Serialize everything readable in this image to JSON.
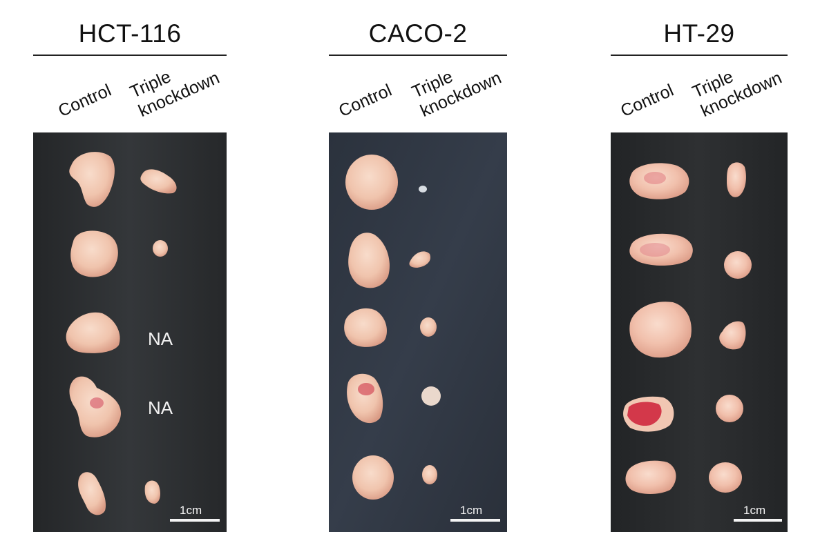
{
  "colors": {
    "panel_hct": "#2a2c2e",
    "panel_caco": "#2d3440",
    "panel_ht": "#25272a",
    "tumor": "#f1c8b4",
    "tumor_shade": "#e3a992",
    "blood": "#d63f4f"
  },
  "groups": [
    {
      "id": "hct116",
      "title": "HCT-116",
      "labels": {
        "control": "Control",
        "knockdown": "Triple\nknockdown"
      },
      "na_label": "NA",
      "scale_label": "1cm"
    },
    {
      "id": "caco2",
      "title": "CACO-2",
      "labels": {
        "control": "Control",
        "knockdown": "Triple\nknockdown"
      },
      "scale_label": "1cm"
    },
    {
      "id": "ht29",
      "title": "HT-29",
      "labels": {
        "control": "Control",
        "knockdown": "Triple\nknockdown"
      },
      "scale_label": "1cm"
    }
  ]
}
